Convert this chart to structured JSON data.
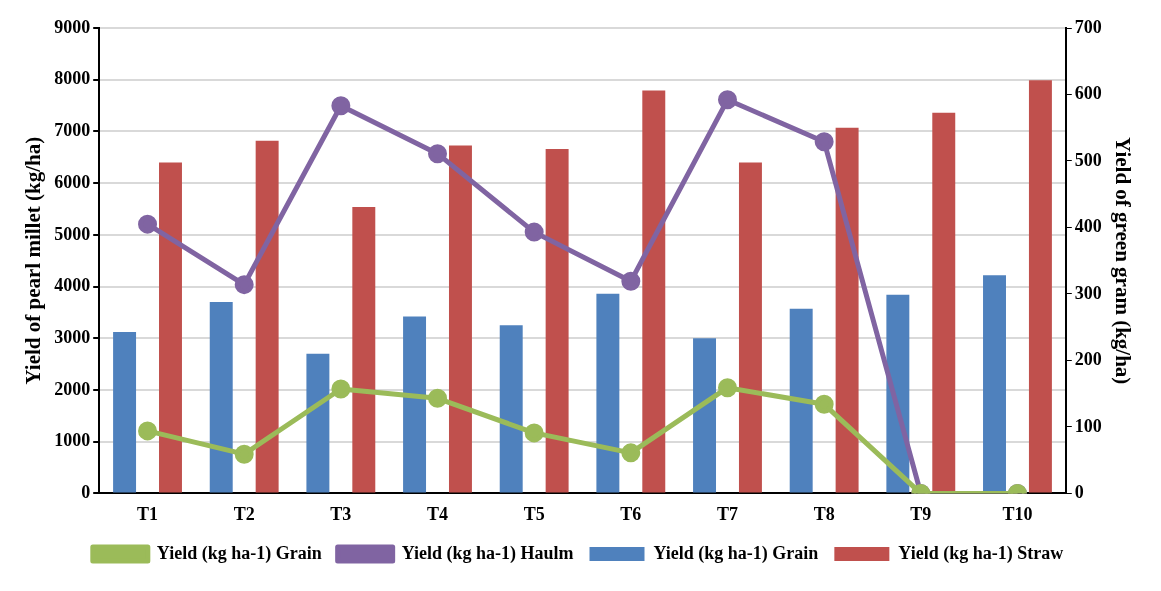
{
  "chart_data": {
    "type": "bar",
    "categories": [
      "T1",
      "T2",
      "T3",
      "T4",
      "T5",
      "T6",
      "T7",
      "T8",
      "T9",
      "T10"
    ],
    "series": [
      {
        "name": "Yield (kg ha-1) Grain",
        "color": "#4f81bd",
        "values": [
          3120,
          3700,
          2700,
          3420,
          3250,
          3860,
          3000,
          3570,
          3840,
          4220
        ]
      },
      {
        "name": "Yield (kg ha-1) Straw",
        "color": "#c0504d",
        "values": [
          6400,
          6820,
          5540,
          6730,
          6660,
          7790,
          6400,
          7070,
          7360,
          7990
        ]
      },
      {
        "name": "Yield (kg ha-1) Grain",
        "type": "line",
        "axis": "y2",
        "color": "#9bbb59",
        "values": [
          94,
          59,
          157,
          143,
          91,
          61,
          159,
          134,
          0,
          0
        ]
      },
      {
        "name": "Yield (kg ha-1) Haulm",
        "type": "line",
        "axis": "y2",
        "color": "#8064a2",
        "values": [
          405,
          314,
          583,
          511,
          393,
          319,
          592,
          529,
          0,
          0
        ]
      }
    ],
    "ylabel": "Yield of pearl millet (kg/ha)",
    "y2label": "Yield of green gram (kg/ha)",
    "ylim": [
      0,
      9000
    ],
    "yticks": [
      0,
      1000,
      2000,
      3000,
      4000,
      5000,
      6000,
      7000,
      8000,
      9000
    ],
    "y2lim": [
      0,
      700
    ],
    "y2ticks": [
      0,
      100,
      200,
      300,
      400,
      500,
      600,
      700
    ],
    "grid": "y",
    "legend": "bottom",
    "marker": "circle",
    "line_style": "solid"
  }
}
